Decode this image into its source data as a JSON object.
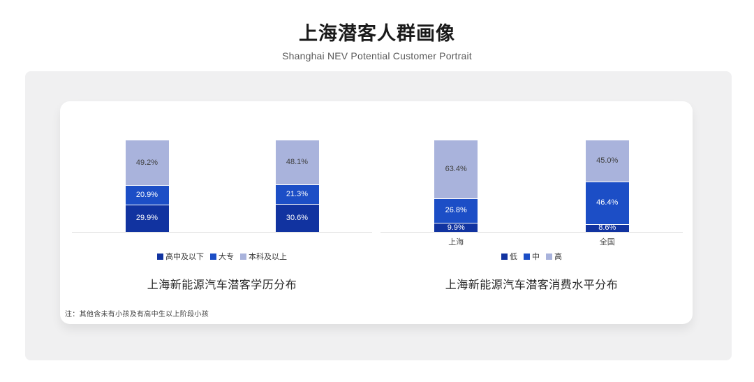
{
  "page": {
    "title": "上海潜客人群画像",
    "subtitle": "Shanghai NEV Potential Customer Portrait",
    "note": "注：其他含未有小孩及有高中生以上阶段小孩"
  },
  "colors": {
    "low": "#1133a0",
    "mid": "#1c4ec6",
    "high": "#a9b3dc",
    "axis_line": "#dcdcdc",
    "label_on_dark": "#ffffff",
    "label_on_light": "#404040"
  },
  "chart_data": [
    {
      "type": "bar",
      "stacked": true,
      "title": "上海新能源汽车潜客学历分布",
      "categories": [
        "",
        ""
      ],
      "show_category_labels": false,
      "unit": "%",
      "ylim": [
        0,
        100
      ],
      "grid": false,
      "legend_position": "bottom",
      "series": [
        {
          "name": "高中及以下",
          "color_key": "low",
          "values": [
            29.9,
            30.6
          ]
        },
        {
          "name": "大专",
          "color_key": "mid",
          "values": [
            20.9,
            21.3
          ]
        },
        {
          "name": "本科及以上",
          "color_key": "high",
          "values": [
            49.2,
            48.1
          ]
        }
      ]
    },
    {
      "type": "bar",
      "stacked": true,
      "title": "上海新能源汽车潜客消费水平分布",
      "categories": [
        "上海",
        "全国"
      ],
      "show_category_labels": true,
      "unit": "%",
      "ylim": [
        0,
        100
      ],
      "grid": false,
      "legend_position": "bottom",
      "series": [
        {
          "name": "低",
          "color_key": "low",
          "values": [
            9.9,
            8.6
          ]
        },
        {
          "name": "中",
          "color_key": "mid",
          "values": [
            26.8,
            46.4
          ]
        },
        {
          "name": "高",
          "color_key": "high",
          "values": [
            63.4,
            45.0
          ]
        }
      ]
    }
  ]
}
